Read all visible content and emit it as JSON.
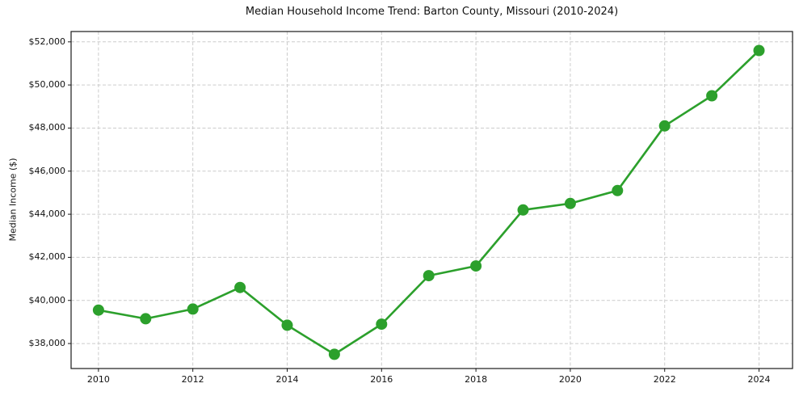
{
  "chart_data": {
    "type": "line",
    "title": "Median Household Income Trend: Barton County, Missouri (2010-2024)",
    "xlabel": "",
    "ylabel": "Median Income ($)",
    "x": [
      2010,
      2011,
      2012,
      2013,
      2014,
      2015,
      2016,
      2017,
      2018,
      2019,
      2020,
      2021,
      2022,
      2023,
      2024
    ],
    "values": [
      39550,
      39150,
      39600,
      40600,
      38850,
      37500,
      38900,
      41150,
      41600,
      44200,
      44500,
      45100,
      48100,
      49500,
      51600
    ],
    "line_color": "#2ca02c",
    "marker": "circle",
    "marker_radius": 7,
    "x_ticks": [
      2010,
      2012,
      2014,
      2016,
      2018,
      2020,
      2022,
      2024
    ],
    "x_tick_labels": [
      "2010",
      "2012",
      "2014",
      "2016",
      "2018",
      "2020",
      "2022",
      "2024"
    ],
    "y_ticks": [
      38000,
      40000,
      42000,
      44000,
      46000,
      48000,
      50000,
      52000
    ],
    "y_tick_labels": [
      "$38,000",
      "$40,000",
      "$42,000",
      "$44,000",
      "$46,000",
      "$48,000",
      "$50,000",
      "$52,000"
    ],
    "xlim": [
      2009.42,
      2024.71
    ],
    "ylim": [
      36840,
      52480
    ],
    "grid": true,
    "grid_style": "dashed",
    "grid_color": "#cccccc",
    "legend": "none",
    "background": "#ffffff"
  }
}
